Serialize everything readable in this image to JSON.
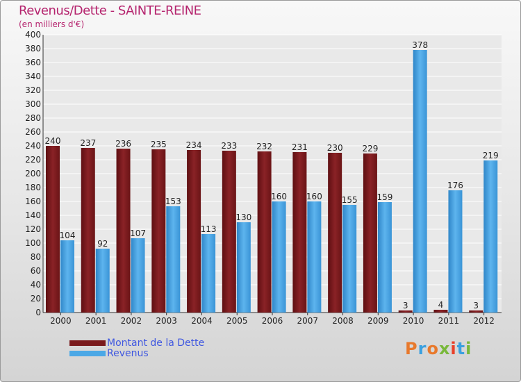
{
  "title": "Revenus/Dette - SAINTE-REINE",
  "subtitle": "(en milliers d'€)",
  "logo": {
    "text": "Proxiti",
    "colors": [
      "#e8792c",
      "#3aa0e0",
      "#e8792c",
      "#78b83a",
      "#e8402a",
      "#3aa0e0",
      "#78b83a"
    ]
  },
  "colors": {
    "dette": "#7a1a1c",
    "revenus": "#4ba8e6",
    "title": "#b5246e",
    "legend_text": "#3f57e0"
  },
  "chart_data": {
    "type": "bar",
    "categories": [
      "2000",
      "2001",
      "2002",
      "2003",
      "2004",
      "2005",
      "2006",
      "2007",
      "2008",
      "2009",
      "2010",
      "2011",
      "2012"
    ],
    "series": [
      {
        "name": "Montant de la Dette",
        "values": [
          240,
          237,
          236,
          235,
          234,
          233,
          232,
          231,
          230,
          229,
          3,
          4,
          3
        ]
      },
      {
        "name": "Revenus",
        "values": [
          104,
          92,
          107,
          153,
          113,
          130,
          160,
          160,
          155,
          159,
          378,
          176,
          219
        ]
      }
    ],
    "ylim": [
      0,
      400
    ],
    "yticks": [
      0,
      20,
      40,
      60,
      80,
      100,
      120,
      140,
      160,
      180,
      200,
      220,
      240,
      260,
      280,
      300,
      320,
      340,
      360,
      380,
      400
    ],
    "grid": true,
    "legend": "bottom-left"
  }
}
